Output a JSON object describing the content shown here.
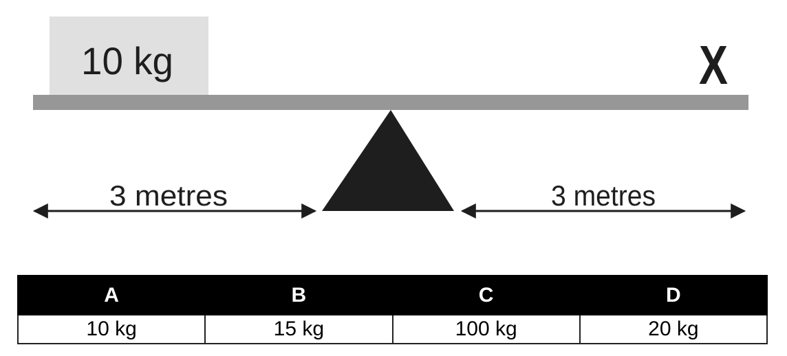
{
  "diagram": {
    "mass_label": "10 kg",
    "unknown_label": "X",
    "left_distance": "3 metres",
    "right_distance": "3 metres",
    "colors": {
      "beam": "#979797",
      "mass_box": "#e0e0e0",
      "fulcrum": "#1e1e1e"
    }
  },
  "options": {
    "headers": [
      "A",
      "B",
      "C",
      "D"
    ],
    "values": [
      "10 kg",
      "15 kg",
      "100 kg",
      "20 kg"
    ]
  }
}
